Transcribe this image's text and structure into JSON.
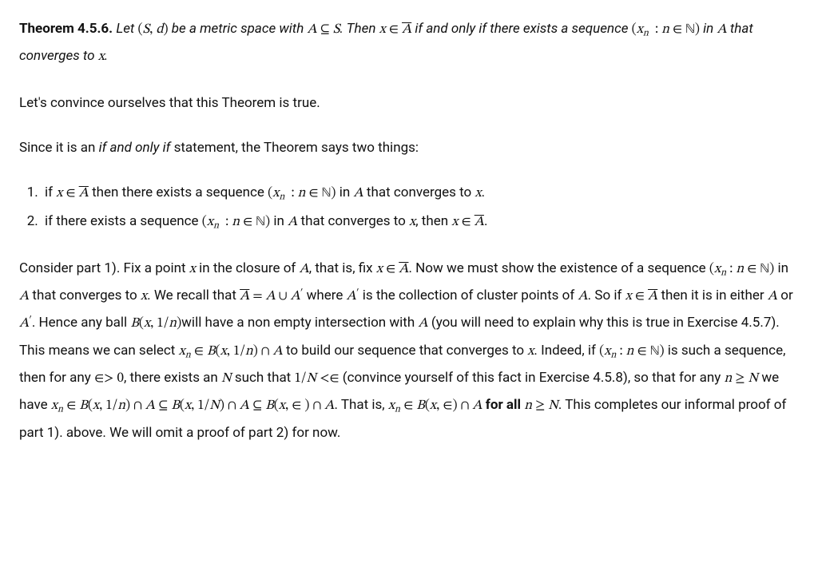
{
  "theorem": {
    "label": "Theorem 4.5.6.",
    "stmt_pre": "Let ",
    "m_Sd": "(S, d)",
    "stmt_mid1": " be a metric space with ",
    "m_AsubS": "A ⊆ S",
    "stmt_mid2": ". Then ",
    "m_xinAbar": "x ∈ A̅",
    "stmt_mid3": " if and only if there exists a sequence ",
    "m_seq": "(xₙ : n ∈ ℕ)",
    "stmt_mid4": " in ",
    "m_A": "A",
    "stmt_mid5": " that converges to ",
    "m_x": "x",
    "stmt_end": "."
  },
  "p1": "Let's convince ourselves that this Theorem is true.",
  "p2_pre": "Since it is an ",
  "p2_iff": "if and only if",
  "p2_post": " statement, the Theorem says two things:",
  "li1": {
    "a": "if ",
    "b": " then there exists a sequence ",
    "c": " in ",
    "d": " that converges to ",
    "e": "."
  },
  "li2": {
    "a": "if there exists a sequence ",
    "b": " in ",
    "c": " that converges to ",
    "d": ", then ",
    "e": "."
  },
  "p3": {
    "t0": "Consider part 1). Fix a point ",
    "t1": " in the closure of ",
    "t2": ", that is, fix ",
    "t3": ". Now we must show the existence of a sequence ",
    "t4": " in ",
    "t5": " that converges to ",
    "t6": ". We recall that ",
    "m_eq": "A̅ = A ∪ A′",
    "t7": " where ",
    "m_Ap": "A′",
    "t8": " is the collection of cluster points of ",
    "t9": ". So if ",
    "t10": " then it is in either ",
    "t11": " or ",
    "t12": ". Hence any ball ",
    "m_ball": "B(x, 1/n)",
    "t13": "will have a non empty intersection with ",
    "t14": " (you will need to explain why this is true in Exercise 4.5.7). This means we can select ",
    "m_sel": "xₙ ∈ B(x, 1/n) ∩ A",
    "t15": " to build our sequence that converges to ",
    "t16": ". Indeed, if ",
    "t17": " is such a sequence, then for any ",
    "m_epsgt": "∈> 0",
    "t18": ", there exists an ",
    "m_N": "N",
    "t19": " such that ",
    "m_1N": "1/N <∈",
    "t20": " (convince yourself of this fact in Exercise 4.5.8), so that for any ",
    "m_ngeN": "n ≥ N",
    "t21": " we have ",
    "m_chain": "xₙ ∈ B(x, 1/n) ∩ A ⊆ B(x, 1/N) ∩ A ⊆ B(x, ∈ ) ∩ A",
    "t22": ". That is, ",
    "m_final": "xₙ ∈ B(x, ∈) ∩ A",
    "t23_bold": " for all ",
    "t24": ". This completes our informal proof of part 1). above. We will omit a proof of part 2) for now."
  }
}
